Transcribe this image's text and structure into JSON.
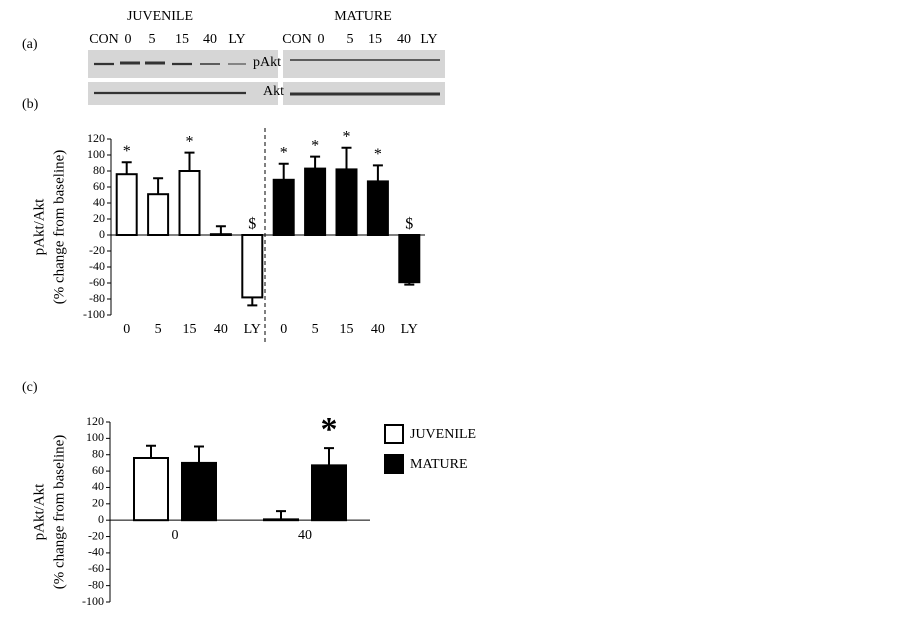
{
  "blots": {
    "label": "(a)",
    "juvenile": {
      "title": "JUVENILE",
      "lanes": [
        "CON",
        "0",
        "5",
        "15",
        "40",
        "LY"
      ]
    },
    "mature": {
      "title": "MATURE",
      "lanes": [
        "CON",
        "0",
        "5",
        "15",
        "40",
        "LY"
      ]
    },
    "rows": [
      "pAkt",
      "Akt"
    ]
  },
  "chart_data": [
    {
      "type": "bar",
      "label": "(b)",
      "ylabel": [
        "pAkt/Akt",
        "(% change from baseline)"
      ],
      "categories": [
        "0",
        "5",
        "15",
        "40",
        "LY",
        "0",
        "5",
        "15",
        "40",
        "LY"
      ],
      "series": [
        {
          "color": "#ffffff",
          "values": [
            76,
            51,
            80,
            1,
            -78,
            null,
            null,
            null,
            null,
            null
          ],
          "errors": [
            15,
            20,
            23,
            10,
            10,
            null,
            null,
            null,
            null,
            null
          ],
          "markers": [
            "*",
            null,
            "*",
            null,
            "$",
            null,
            null,
            null,
            null,
            null
          ]
        },
        {
          "color": "#000000",
          "values": [
            null,
            null,
            null,
            null,
            null,
            69,
            83,
            82,
            67,
            -59
          ],
          "errors": [
            null,
            null,
            null,
            null,
            null,
            20,
            15,
            27,
            20,
            3
          ],
          "markers": [
            null,
            null,
            null,
            null,
            null,
            "*",
            "*",
            "*",
            "*",
            "$"
          ]
        }
      ],
      "ylim": [
        -100,
        120
      ],
      "yticks": [
        -100,
        -80,
        -60,
        -40,
        -20,
        0,
        20,
        40,
        60,
        80,
        100,
        120
      ]
    },
    {
      "type": "bar",
      "label": "(c)",
      "ylabel": [
        "pAkt/Akt",
        "(% change from baseline)"
      ],
      "categories": [
        "0",
        "40"
      ],
      "series": [
        {
          "name": "JUVENILE",
          "color": "#ffffff",
          "values": [
            76,
            1
          ],
          "errors": [
            15,
            10
          ],
          "markers": [
            null,
            null
          ]
        },
        {
          "name": "MATURE",
          "color": "#000000",
          "values": [
            70,
            67
          ],
          "errors": [
            20,
            21
          ],
          "markers": [
            null,
            "*"
          ]
        }
      ],
      "ylim": [
        -100,
        120
      ],
      "yticks": [
        -100,
        -80,
        -60,
        -40,
        -20,
        0,
        20,
        40,
        60,
        80,
        100,
        120
      ],
      "legend": "right"
    }
  ]
}
